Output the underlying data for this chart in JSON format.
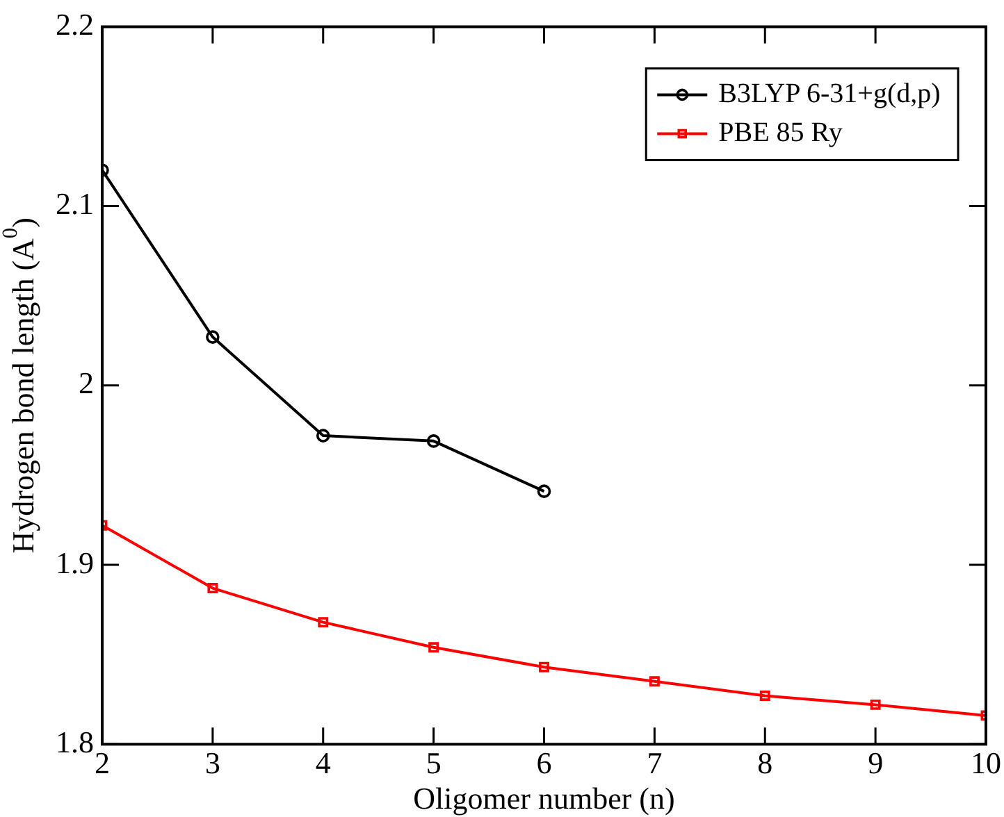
{
  "chart_data": {
    "type": "line",
    "xlabel": "Oligomer number (n)",
    "ylabel": "Hydrogen bond length (A$^{0}$)",
    "xlim": [
      2,
      10
    ],
    "xticks": [
      2,
      3,
      4,
      5,
      6,
      7,
      8,
      9,
      10
    ],
    "ylim": [
      1.8,
      2.2
    ],
    "yticks": [
      1.8,
      1.9,
      2,
      2.1,
      2.2
    ],
    "grid": false,
    "legend": "top right",
    "line_style": "solid",
    "series": [
      {
        "name": "B3LYP 6-31+g(d,p)",
        "color": "#000000",
        "marker": "circle",
        "x": [
          2,
          3,
          4,
          5,
          6
        ],
        "values": [
          2.12,
          2.027,
          1.972,
          1.969,
          1.941
        ]
      },
      {
        "name": "PBE 85 Ry",
        "color": "#ff0000",
        "marker": "square",
        "x": [
          2,
          3,
          4,
          5,
          6,
          7,
          8,
          9,
          10
        ],
        "values": [
          1.922,
          1.887,
          1.868,
          1.854,
          1.843,
          1.835,
          1.827,
          1.822,
          1.816
        ]
      }
    ]
  }
}
